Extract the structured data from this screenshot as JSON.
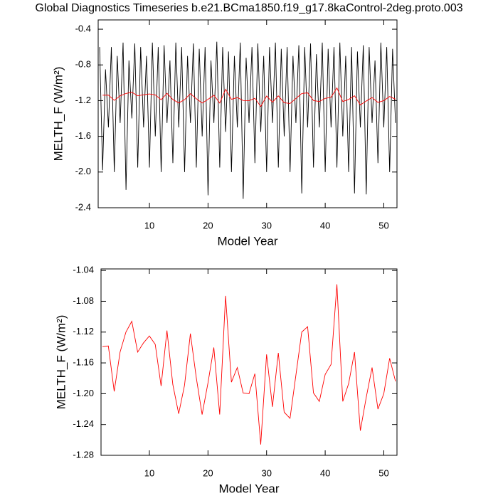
{
  "title": "Global Diagnostics Timeseries b.e21.BCma1850.f19_g17.8kaControl-2deg.proto.003",
  "chart_data": [
    {
      "type": "line",
      "xlabel": "Model Year",
      "ylabel": "MELTH_F (W/m²)",
      "xlim": [
        1.25,
        52.25
      ],
      "ylim": [
        -2.4,
        -0.296
      ],
      "xticks": [
        10,
        20,
        30,
        40,
        50
      ],
      "yticks": [
        -0.4,
        -0.8,
        -1.2,
        -1.6,
        {
          "value": -2,
          "label": "-2.0"
        },
        -2.4
      ],
      "series": [
        {
          "color": "#000000",
          "x": [
            1.5,
            2,
            2.5,
            3,
            3.5,
            4,
            4.5,
            5,
            5.5,
            6,
            6.5,
            7,
            7.5,
            8,
            8.5,
            9,
            9.5,
            10,
            10.5,
            11,
            11.5,
            12,
            12.5,
            13,
            13.5,
            14,
            14.5,
            15,
            15.5,
            16,
            16.5,
            17,
            17.5,
            18,
            18.5,
            19,
            19.5,
            20,
            20.5,
            21,
            21.5,
            22,
            22.5,
            23,
            23.5,
            24,
            24.5,
            25,
            25.5,
            26,
            26.5,
            27,
            27.5,
            28,
            28.5,
            29,
            29.5,
            30,
            30.5,
            31,
            31.5,
            32,
            32.5,
            33,
            33.5,
            34,
            34.5,
            35,
            35.5,
            36,
            36.5,
            37,
            37.5,
            38,
            38.5,
            39,
            39.5,
            40,
            40.5,
            41,
            41.5,
            42,
            42.5,
            43,
            43.5,
            44,
            44.5,
            45,
            45.5,
            46,
            46.5,
            47,
            47.5,
            48,
            48.5,
            49,
            49.5,
            50,
            50.5,
            51,
            51.5,
            52
          ],
          "values": [
            -0.6,
            -1.98,
            -0.85,
            -1.5,
            -0.6,
            -2.0,
            -0.7,
            -1.45,
            -0.55,
            -2.2,
            -0.75,
            -1.4,
            -0.56,
            -1.95,
            -0.6,
            -1.5,
            -0.7,
            -1.95,
            -0.55,
            -1.6,
            -0.6,
            -2.0,
            -0.58,
            -1.45,
            -0.75,
            -1.9,
            -0.55,
            -1.5,
            -0.6,
            -2.0,
            -0.7,
            -1.45,
            -0.56,
            -1.95,
            -0.62,
            -1.6,
            -0.6,
            -2.26,
            -0.75,
            -1.45,
            -0.54,
            -1.95,
            -0.6,
            -1.55,
            -0.65,
            -2.0,
            -0.7,
            -1.5,
            -0.55,
            -2.3,
            -0.72,
            -1.45,
            -0.6,
            -1.9,
            -0.56,
            -1.55,
            -0.7,
            -2.0,
            -0.6,
            -1.45,
            -0.55,
            -1.95,
            -0.62,
            -1.6,
            -0.6,
            -2.0,
            -0.7,
            -1.45,
            -0.58,
            -2.24,
            -0.6,
            -1.5,
            -0.56,
            -1.95,
            -0.68,
            -1.5,
            -0.55,
            -2.0,
            -0.62,
            -1.5,
            -0.6,
            -1.95,
            -0.55,
            -1.6,
            -0.7,
            -2.0,
            -0.6,
            -2.24,
            -0.65,
            -1.5,
            -0.58,
            -2.25,
            -0.6,
            -1.45,
            -0.75,
            -1.9,
            -0.55,
            -1.5,
            -0.6,
            -2.0,
            -0.62,
            -1.45
          ]
        },
        {
          "color": "#ff0000",
          "x": [
            2,
            3,
            4,
            5,
            6,
            7,
            8,
            9,
            10,
            11,
            12,
            13,
            14,
            15,
            16,
            17,
            18,
            19,
            20,
            21,
            22,
            23,
            24,
            25,
            26,
            27,
            28,
            29,
            30,
            31,
            32,
            33,
            34,
            35,
            36,
            37,
            38,
            39,
            40,
            41,
            42,
            43,
            44,
            45,
            46,
            47,
            48,
            49,
            50,
            51,
            52
          ],
          "values": [
            -1.139,
            -1.138,
            -1.197,
            -1.146,
            -1.12,
            -1.106,
            -1.146,
            -1.134,
            -1.125,
            -1.136,
            -1.19,
            -1.118,
            -1.188,
            -1.226,
            -1.189,
            -1.122,
            -1.179,
            -1.227,
            -1.186,
            -1.14,
            -1.227,
            -1.073,
            -1.185,
            -1.166,
            -1.199,
            -1.2,
            -1.174,
            -1.266,
            -1.149,
            -1.217,
            -1.147,
            -1.224,
            -1.232,
            -1.176,
            -1.12,
            -1.113,
            -1.199,
            -1.21,
            -1.175,
            -1.162,
            -1.058,
            -1.21,
            -1.187,
            -1.146,
            -1.248,
            -1.205,
            -1.166,
            -1.22,
            -1.2,
            -1.154,
            -1.184
          ]
        }
      ]
    },
    {
      "type": "line",
      "xlabel": "Model Year",
      "ylabel": "MELTH_F (W/m²)",
      "xlim": [
        1.75,
        52.25
      ],
      "ylim": [
        -1.28,
        -1.038
      ],
      "xticks": [
        10,
        20,
        30,
        40,
        50
      ],
      "yticks": [
        -1.04,
        -1.08,
        -1.12,
        -1.16,
        {
          "value": -1.2,
          "label": "-1.20"
        },
        -1.24,
        -1.28
      ],
      "series": [
        {
          "color": "#ff0000",
          "x": [
            2,
            3,
            4,
            5,
            6,
            7,
            8,
            9,
            10,
            11,
            12,
            13,
            14,
            15,
            16,
            17,
            18,
            19,
            20,
            21,
            22,
            23,
            24,
            25,
            26,
            27,
            28,
            29,
            30,
            31,
            32,
            33,
            34,
            35,
            36,
            37,
            38,
            39,
            40,
            41,
            42,
            43,
            44,
            45,
            46,
            47,
            48,
            49,
            50,
            51,
            52
          ],
          "values": [
            -1.139,
            -1.138,
            -1.197,
            -1.146,
            -1.12,
            -1.106,
            -1.146,
            -1.134,
            -1.125,
            -1.136,
            -1.19,
            -1.118,
            -1.188,
            -1.226,
            -1.189,
            -1.122,
            -1.179,
            -1.227,
            -1.186,
            -1.14,
            -1.227,
            -1.073,
            -1.185,
            -1.166,
            -1.199,
            -1.2,
            -1.174,
            -1.266,
            -1.149,
            -1.217,
            -1.147,
            -1.224,
            -1.232,
            -1.176,
            -1.12,
            -1.113,
            -1.199,
            -1.21,
            -1.175,
            -1.162,
            -1.058,
            -1.21,
            -1.187,
            -1.146,
            -1.248,
            -1.205,
            -1.166,
            -1.22,
            -1.2,
            -1.154,
            -1.184
          ]
        }
      ]
    }
  ]
}
